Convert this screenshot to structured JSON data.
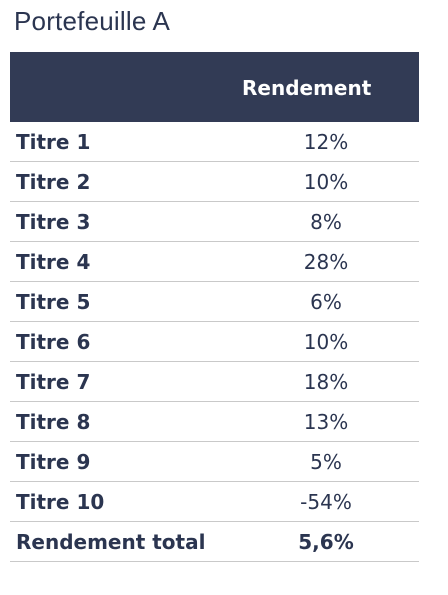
{
  "title": "Portefeuille A",
  "table": {
    "header": {
      "name": "",
      "value": "Rendement"
    },
    "rows": [
      {
        "name": "Titre 1",
        "value": "12%"
      },
      {
        "name": "Titre 2",
        "value": "10%"
      },
      {
        "name": "Titre 3",
        "value": "8%"
      },
      {
        "name": "Titre 4",
        "value": "28%"
      },
      {
        "name": "Titre 5",
        "value": "6%"
      },
      {
        "name": "Titre 6",
        "value": "10%"
      },
      {
        "name": "Titre 7",
        "value": "18%"
      },
      {
        "name": "Titre 8",
        "value": "13%"
      },
      {
        "name": "Titre 9",
        "value": "5%"
      },
      {
        "name": "Titre 10",
        "value": "-54%"
      }
    ],
    "total": {
      "name": "Rendement total",
      "value": "5,6%"
    }
  },
  "colors": {
    "header_bg": "#323b55",
    "text": "#2b3550",
    "row_border": "#c9c9c9"
  }
}
